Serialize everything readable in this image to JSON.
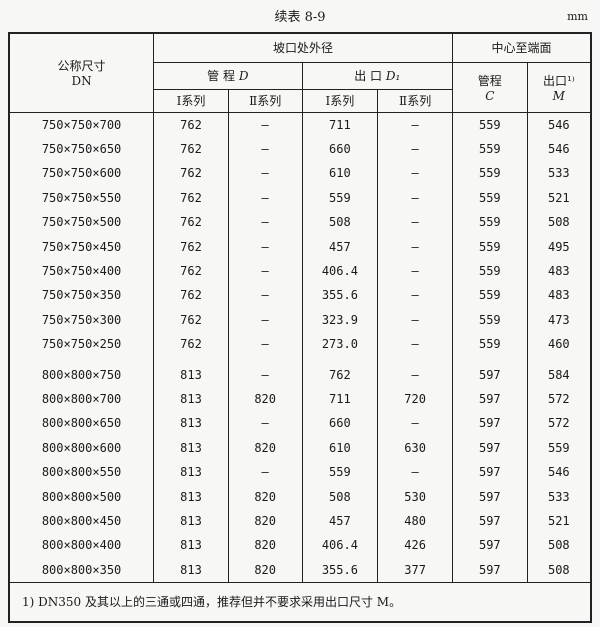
{
  "caption": "续表 8-9",
  "unit": "mm",
  "header": {
    "dn": "公称尺寸",
    "dn2": "DN",
    "outer_diameter": "坡口处外径",
    "center_to_end": "中心至端面",
    "run_D": "管 程",
    "run_D_sym": "D",
    "outlet_D1": "出 口",
    "outlet_D1_sym": "D₁",
    "run_C": "管程",
    "run_C_sym": "C",
    "outlet_M": "出口¹⁾",
    "outlet_M_sym": "M",
    "series1": "Ⅰ系列",
    "series2": "Ⅱ系列"
  },
  "rows": [
    [
      "750×750×700",
      "762",
      "—",
      "711",
      "—",
      "559",
      "546"
    ],
    [
      "750×750×650",
      "762",
      "—",
      "660",
      "—",
      "559",
      "546"
    ],
    [
      "750×750×600",
      "762",
      "—",
      "610",
      "—",
      "559",
      "533"
    ],
    [
      "750×750×550",
      "762",
      "—",
      "559",
      "—",
      "559",
      "521"
    ],
    [
      "750×750×500",
      "762",
      "—",
      "508",
      "—",
      "559",
      "508"
    ],
    [
      "750×750×450",
      "762",
      "—",
      "457",
      "—",
      "559",
      "495"
    ],
    [
      "750×750×400",
      "762",
      "—",
      "406.4",
      "—",
      "559",
      "483"
    ],
    [
      "750×750×350",
      "762",
      "—",
      "355.6",
      "—",
      "559",
      "483"
    ],
    [
      "750×750×300",
      "762",
      "—",
      "323.9",
      "—",
      "559",
      "473"
    ],
    [
      "750×750×250",
      "762",
      "—",
      "273.0",
      "—",
      "559",
      "460"
    ],
    [
      "800×800×750",
      "813",
      "—",
      "762",
      "—",
      "597",
      "584"
    ],
    [
      "800×800×700",
      "813",
      "820",
      "711",
      "720",
      "597",
      "572"
    ],
    [
      "800×800×650",
      "813",
      "—",
      "660",
      "—",
      "597",
      "572"
    ],
    [
      "800×800×600",
      "813",
      "820",
      "610",
      "630",
      "597",
      "559"
    ],
    [
      "800×800×550",
      "813",
      "—",
      "559",
      "—",
      "597",
      "546"
    ],
    [
      "800×800×500",
      "813",
      "820",
      "508",
      "530",
      "597",
      "533"
    ],
    [
      "800×800×450",
      "813",
      "820",
      "457",
      "480",
      "597",
      "521"
    ],
    [
      "800×800×400",
      "813",
      "820",
      "406.4",
      "426",
      "597",
      "508"
    ],
    [
      "800×800×350",
      "813",
      "820",
      "355.6",
      "377",
      "597",
      "508"
    ]
  ],
  "footnote": "1) DN350 及其以上的三通或四通，推荐但并不要求采用出口尺寸 M。"
}
